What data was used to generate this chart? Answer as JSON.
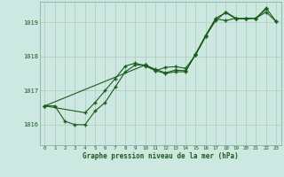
{
  "title": "Graphe pression niveau de la mer (hPa)",
  "background_color": "#cce8e0",
  "grid_color": "#b0c8c0",
  "line_color": "#1a5c1a",
  "xlim": [
    -0.5,
    23.5
  ],
  "ylim": [
    1015.4,
    1019.6
  ],
  "yticks": [
    1016,
    1017,
    1018,
    1019
  ],
  "xticks": [
    0,
    1,
    2,
    3,
    4,
    5,
    6,
    7,
    8,
    9,
    10,
    11,
    12,
    13,
    14,
    15,
    16,
    17,
    18,
    19,
    20,
    21,
    22,
    23
  ],
  "series": [
    {
      "x": [
        0,
        1,
        2,
        3,
        4,
        5,
        6,
        7,
        8,
        9,
        10,
        11,
        12,
        13,
        14,
        15,
        16,
        17,
        18,
        19,
        20,
        21,
        22
      ],
      "y": [
        1016.55,
        1016.55,
        1016.1,
        1016.0,
        1016.0,
        1016.4,
        1016.65,
        1017.1,
        1017.55,
        1017.75,
        1017.75,
        1017.62,
        1017.52,
        1017.6,
        1017.58,
        1018.05,
        1018.58,
        1019.1,
        1019.05,
        1019.12,
        1019.1,
        1019.12,
        1019.38
      ]
    },
    {
      "x": [
        0,
        4,
        5,
        6,
        7,
        8,
        9,
        10,
        11,
        12,
        13,
        14,
        15,
        16,
        17,
        18,
        19,
        20,
        21,
        22,
        23
      ],
      "y": [
        1016.55,
        1016.35,
        1016.65,
        1017.0,
        1017.35,
        1017.72,
        1017.8,
        1017.72,
        1017.58,
        1017.68,
        1017.7,
        1017.65,
        1018.05,
        1018.6,
        1019.05,
        1019.3,
        1019.12,
        1019.1,
        1019.12,
        1019.3,
        1019.02
      ]
    },
    {
      "x": [
        0,
        10,
        11,
        12,
        13,
        14,
        15,
        16,
        17,
        18,
        19,
        20,
        21,
        22,
        23
      ],
      "y": [
        1016.55,
        1017.75,
        1017.58,
        1017.5,
        1017.55,
        1017.55,
        1018.08,
        1018.62,
        1019.12,
        1019.28,
        1019.1,
        1019.12,
        1019.12,
        1019.42,
        1019.02
      ]
    }
  ]
}
